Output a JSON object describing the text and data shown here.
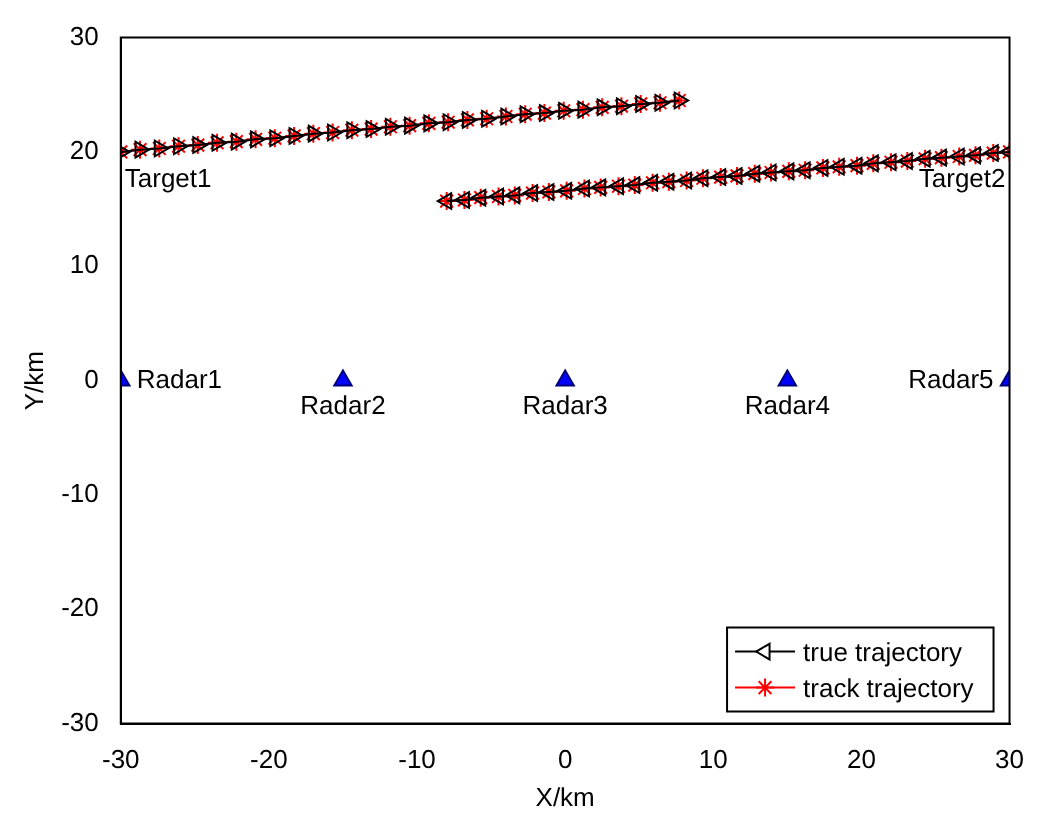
{
  "chart_data": {
    "type": "line",
    "xlabel": "X/km",
    "ylabel": "Y/km",
    "xlim": [
      -30,
      30
    ],
    "ylim": [
      -30,
      30
    ],
    "xticks": [
      -30,
      -20,
      -10,
      0,
      10,
      20,
      30
    ],
    "yticks": [
      -30,
      -20,
      -10,
      0,
      10,
      20,
      30
    ],
    "grid": false,
    "legend": "bottom right",
    "series": [
      {
        "name": "true trajectory",
        "type": "line",
        "marker": "triangle",
        "color": "#000000",
        "x": [
          -30,
          -28.7,
          -27.4,
          -26.1,
          -24.8,
          -23.5,
          -22.2,
          -20.9,
          -19.6,
          -18.3,
          -17,
          -15.7,
          -14.4,
          -13.1,
          -11.8,
          -10.5,
          -9.2,
          -7.9,
          -6.6,
          -5.3,
          -4,
          -2.7,
          -1.4,
          -0.1,
          1.2,
          2.5,
          3.8,
          5.1,
          6.4,
          7.7
        ],
        "values": [
          20,
          20.2,
          20.3,
          20.5,
          20.6,
          20.8,
          20.9,
          21.1,
          21.2,
          21.4,
          21.6,
          21.7,
          21.9,
          22,
          22.2,
          22.3,
          22.5,
          22.6,
          22.8,
          22.9,
          23.1,
          23.3,
          23.4,
          23.6,
          23.7,
          23.9,
          24,
          24.2,
          24.3,
          24.5
        ]
      },
      {
        "name": "track trajectory",
        "type": "line",
        "marker": "cross",
        "color": "#ff0000",
        "x": [
          -30,
          -28.7,
          -27.4,
          -26.1,
          -24.8,
          -23.5,
          -22.2,
          -20.9,
          -19.6,
          -18.3,
          -17,
          -15.7,
          -14.4,
          -13.1,
          -11.8,
          -10.5,
          -9.2,
          -7.9,
          -6.6,
          -5.3,
          -4,
          -2.7,
          -1.4,
          -0.1,
          1.2,
          2.5,
          3.8,
          5.1,
          6.4,
          7.7
        ],
        "values": [
          20,
          20.2,
          20.3,
          20.5,
          20.6,
          20.8,
          20.9,
          21.1,
          21.2,
          21.4,
          21.6,
          21.7,
          21.9,
          22,
          22.2,
          22.3,
          22.5,
          22.6,
          22.8,
          22.9,
          23.1,
          23.3,
          23.4,
          23.6,
          23.7,
          23.9,
          24,
          24.2,
          24.3,
          24.5
        ]
      },
      {
        "type": "line",
        "marker": "triangle",
        "color": "#000000",
        "x": [
          30,
          28.9,
          27.7,
          26.6,
          25.4,
          24.3,
          23.1,
          22,
          20.8,
          19.7,
          18.5,
          17.4,
          16.2,
          15.1,
          13.9,
          12.8,
          11.6,
          10.5,
          9.3,
          8.2,
          7,
          5.9,
          4.7,
          3.6,
          2.4,
          1.3,
          0.1,
          -1.1,
          -2.2,
          -3.4,
          -4.5,
          -5.7,
          -6.8,
          -8
        ],
        "values": [
          20,
          19.9,
          19.7,
          19.6,
          19.5,
          19.4,
          19.2,
          19.1,
          19,
          18.8,
          18.7,
          18.6,
          18.4,
          18.3,
          18.2,
          18.1,
          17.9,
          17.8,
          17.7,
          17.5,
          17.4,
          17.3,
          17.1,
          17,
          16.9,
          16.8,
          16.6,
          16.5,
          16.4,
          16.2,
          16.1,
          16,
          15.8,
          15.7
        ]
      },
      {
        "type": "line",
        "marker": "cross",
        "color": "#ff0000",
        "x": [
          30,
          28.9,
          27.7,
          26.6,
          25.4,
          24.3,
          23.1,
          22,
          20.8,
          19.7,
          18.5,
          17.4,
          16.2,
          15.1,
          13.9,
          12.8,
          11.6,
          10.5,
          9.3,
          8.2,
          7,
          5.9,
          4.7,
          3.6,
          2.4,
          1.3,
          0.1,
          -1.1,
          -2.2,
          -3.4,
          -4.5,
          -5.7,
          -6.8,
          -8
        ],
        "values": [
          20,
          19.9,
          19.7,
          19.6,
          19.5,
          19.4,
          19.2,
          19.1,
          19,
          18.8,
          18.7,
          18.6,
          18.4,
          18.3,
          18.2,
          18.1,
          17.9,
          17.8,
          17.7,
          17.5,
          17.4,
          17.3,
          17.1,
          17,
          16.9,
          16.8,
          16.6,
          16.5,
          16.4,
          16.2,
          16.1,
          16,
          15.8,
          15.7
        ]
      },
      {
        "type": "scatter",
        "marker": "triangle",
        "color": "#0000ff",
        "x": [
          -30,
          -15,
          0,
          15,
          30
        ],
        "values": [
          0,
          0,
          0,
          0,
          0
        ]
      }
    ],
    "annotations": [
      {
        "text": "Target1",
        "x": -30,
        "y": 20
      },
      {
        "text": "Target2",
        "x": 30,
        "y": 20
      },
      {
        "text": "Radar1",
        "x": -30,
        "y": 0
      },
      {
        "text": "Radar2",
        "x": -15,
        "y": 0
      },
      {
        "text": "Radar3",
        "x": 0,
        "y": 0
      },
      {
        "text": "Radar4",
        "x": 15,
        "y": 0
      },
      {
        "text": "Radar5",
        "x": 30,
        "y": 0
      }
    ]
  }
}
